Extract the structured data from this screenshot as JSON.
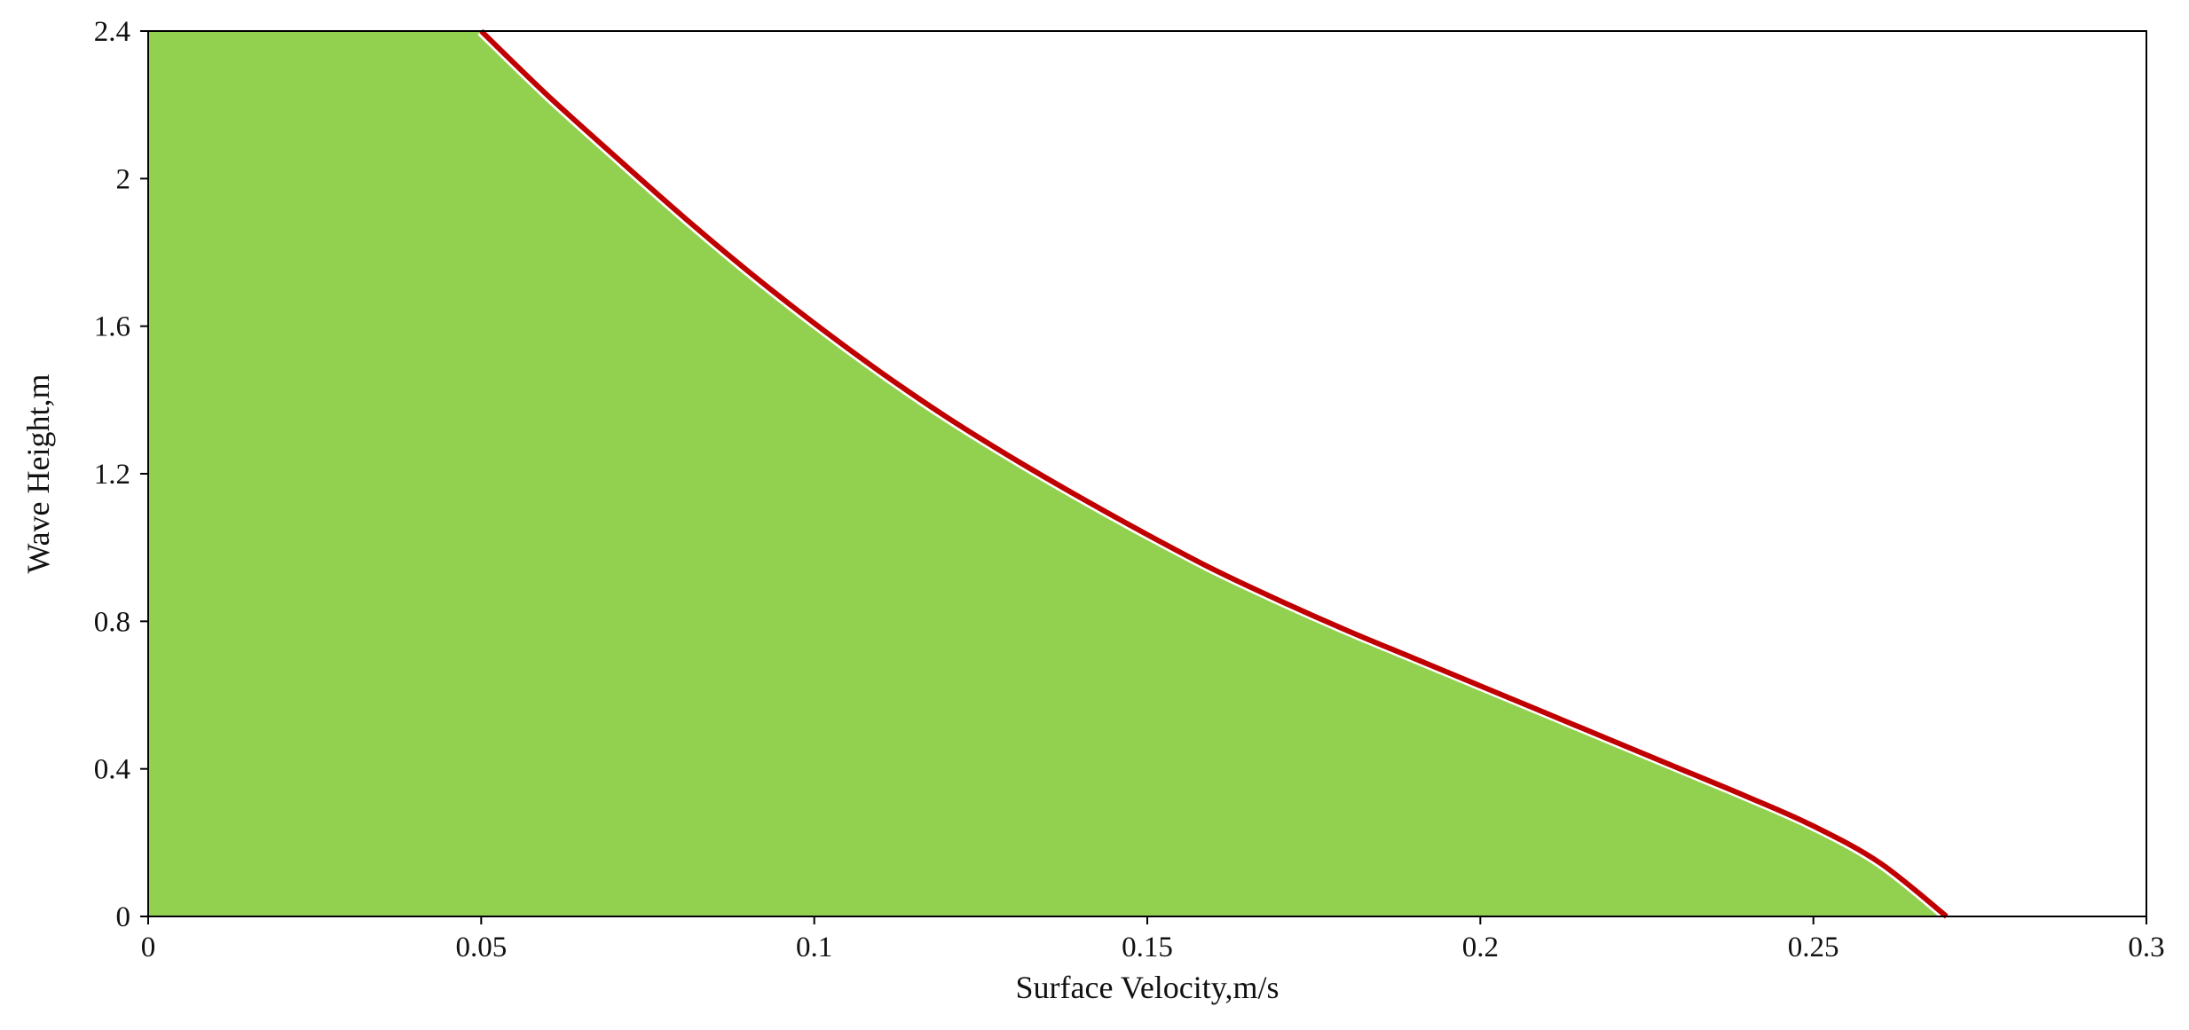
{
  "chart_data": {
    "type": "area",
    "title": "",
    "xlabel": "Surface Velocity,m/s",
    "ylabel": "Wave Height,m",
    "xlim": [
      0,
      0.3
    ],
    "ylim": [
      0,
      2.4
    ],
    "x_ticks": [
      "0",
      "0.05",
      "0.1",
      "0.15",
      "0.2",
      "0.25",
      "0.3"
    ],
    "y_ticks": [
      "0",
      "0.4",
      "0.8",
      "1.2",
      "1.6",
      "2",
      "2.4"
    ],
    "grid": false,
    "legend": "none",
    "series": [
      {
        "x": [
          0,
          0.05,
          0.06,
          0.07,
          0.08,
          0.09,
          0.1,
          0.11,
          0.12,
          0.13,
          0.14,
          0.15,
          0.16,
          0.17,
          0.18,
          0.19,
          0.2,
          0.21,
          0.22,
          0.23,
          0.24,
          0.25,
          0.26,
          0.27
        ],
        "y": [
          2.4,
          2.4,
          2.225,
          2.062,
          1.902,
          1.75,
          1.608,
          1.475,
          1.352,
          1.24,
          1.135,
          1.035,
          0.94,
          0.855,
          0.775,
          0.7,
          0.625,
          0.55,
          0.475,
          0.4,
          0.325,
          0.245,
          0.145,
          0
        ],
        "fill_color": "#92d050",
        "line_color": "#c00000"
      }
    ]
  }
}
